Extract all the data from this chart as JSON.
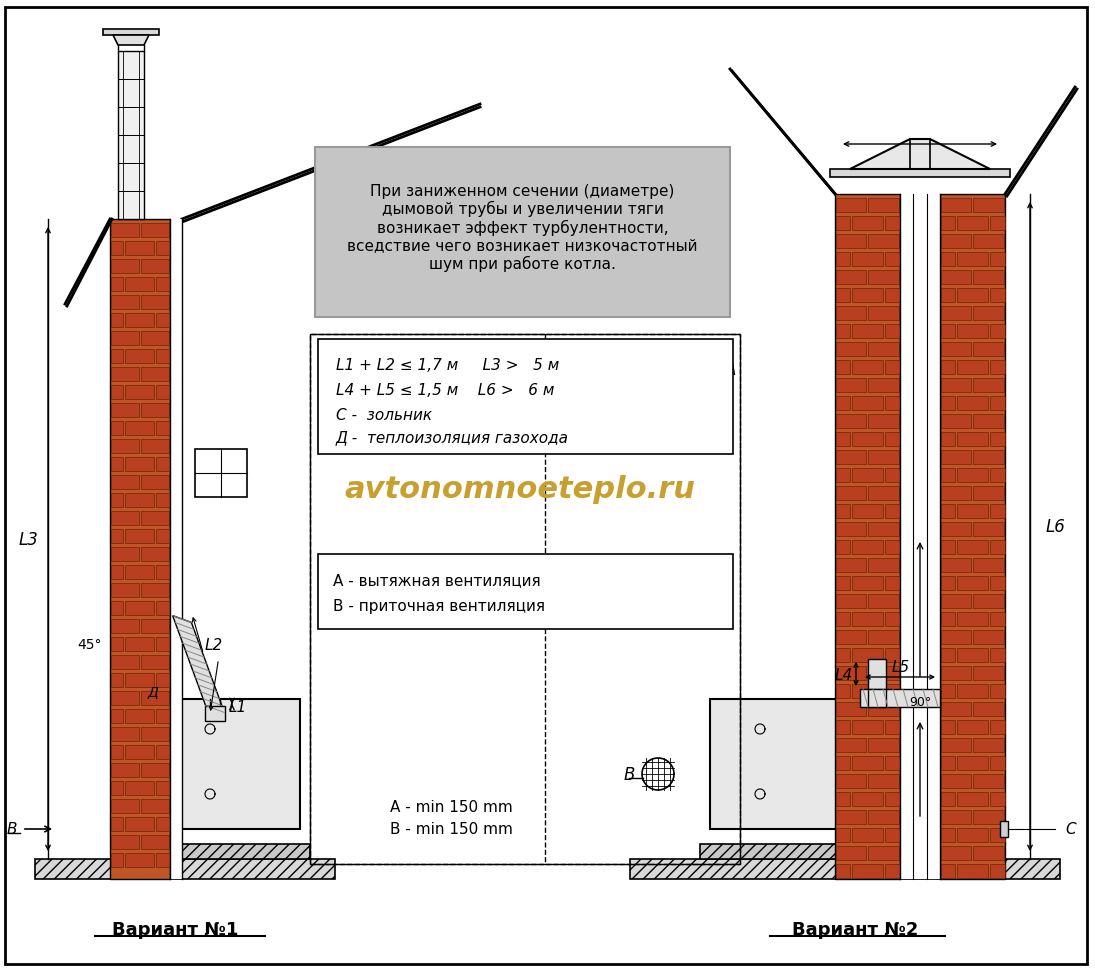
{
  "background_color": "#ffffff",
  "brick_color_dark": "#8B3A10",
  "brick_color_light": "#C05520",
  "brick_fill": "#B84A20",
  "gray_box_color": "#C0C0C0",
  "warning_text": "При заниженном сечении (диаметре)\nдымовой трубы и увеличении тяги\nвозникает эффект турбулентности,\nвседствие чего возникает низкочастотный\nшум при работе котла.",
  "legend_text1_line1": "L1 + L2 ≤ 1,7 м     L3 >   5 м",
  "legend_text1_line2": "L4 + L5 ≤ 1,5 м    L6 >   6 м",
  "legend_text1_line3": "С -  зольник",
  "legend_text1_line4": "Д -  теплоизоляция газохода",
  "legend_text2_line1": "А - вытяжная вентиляция",
  "legend_text2_line2": "В - приточная вентиляция",
  "bottom_text_line1": "А - min 150 mm",
  "bottom_text_line2": "В - min 150 mm",
  "watermark": "avtonomnoeteplo.ru",
  "label1": "Вариант №1",
  "label2": "Вариант №2",
  "angle45": "45°",
  "angle90": "90°"
}
